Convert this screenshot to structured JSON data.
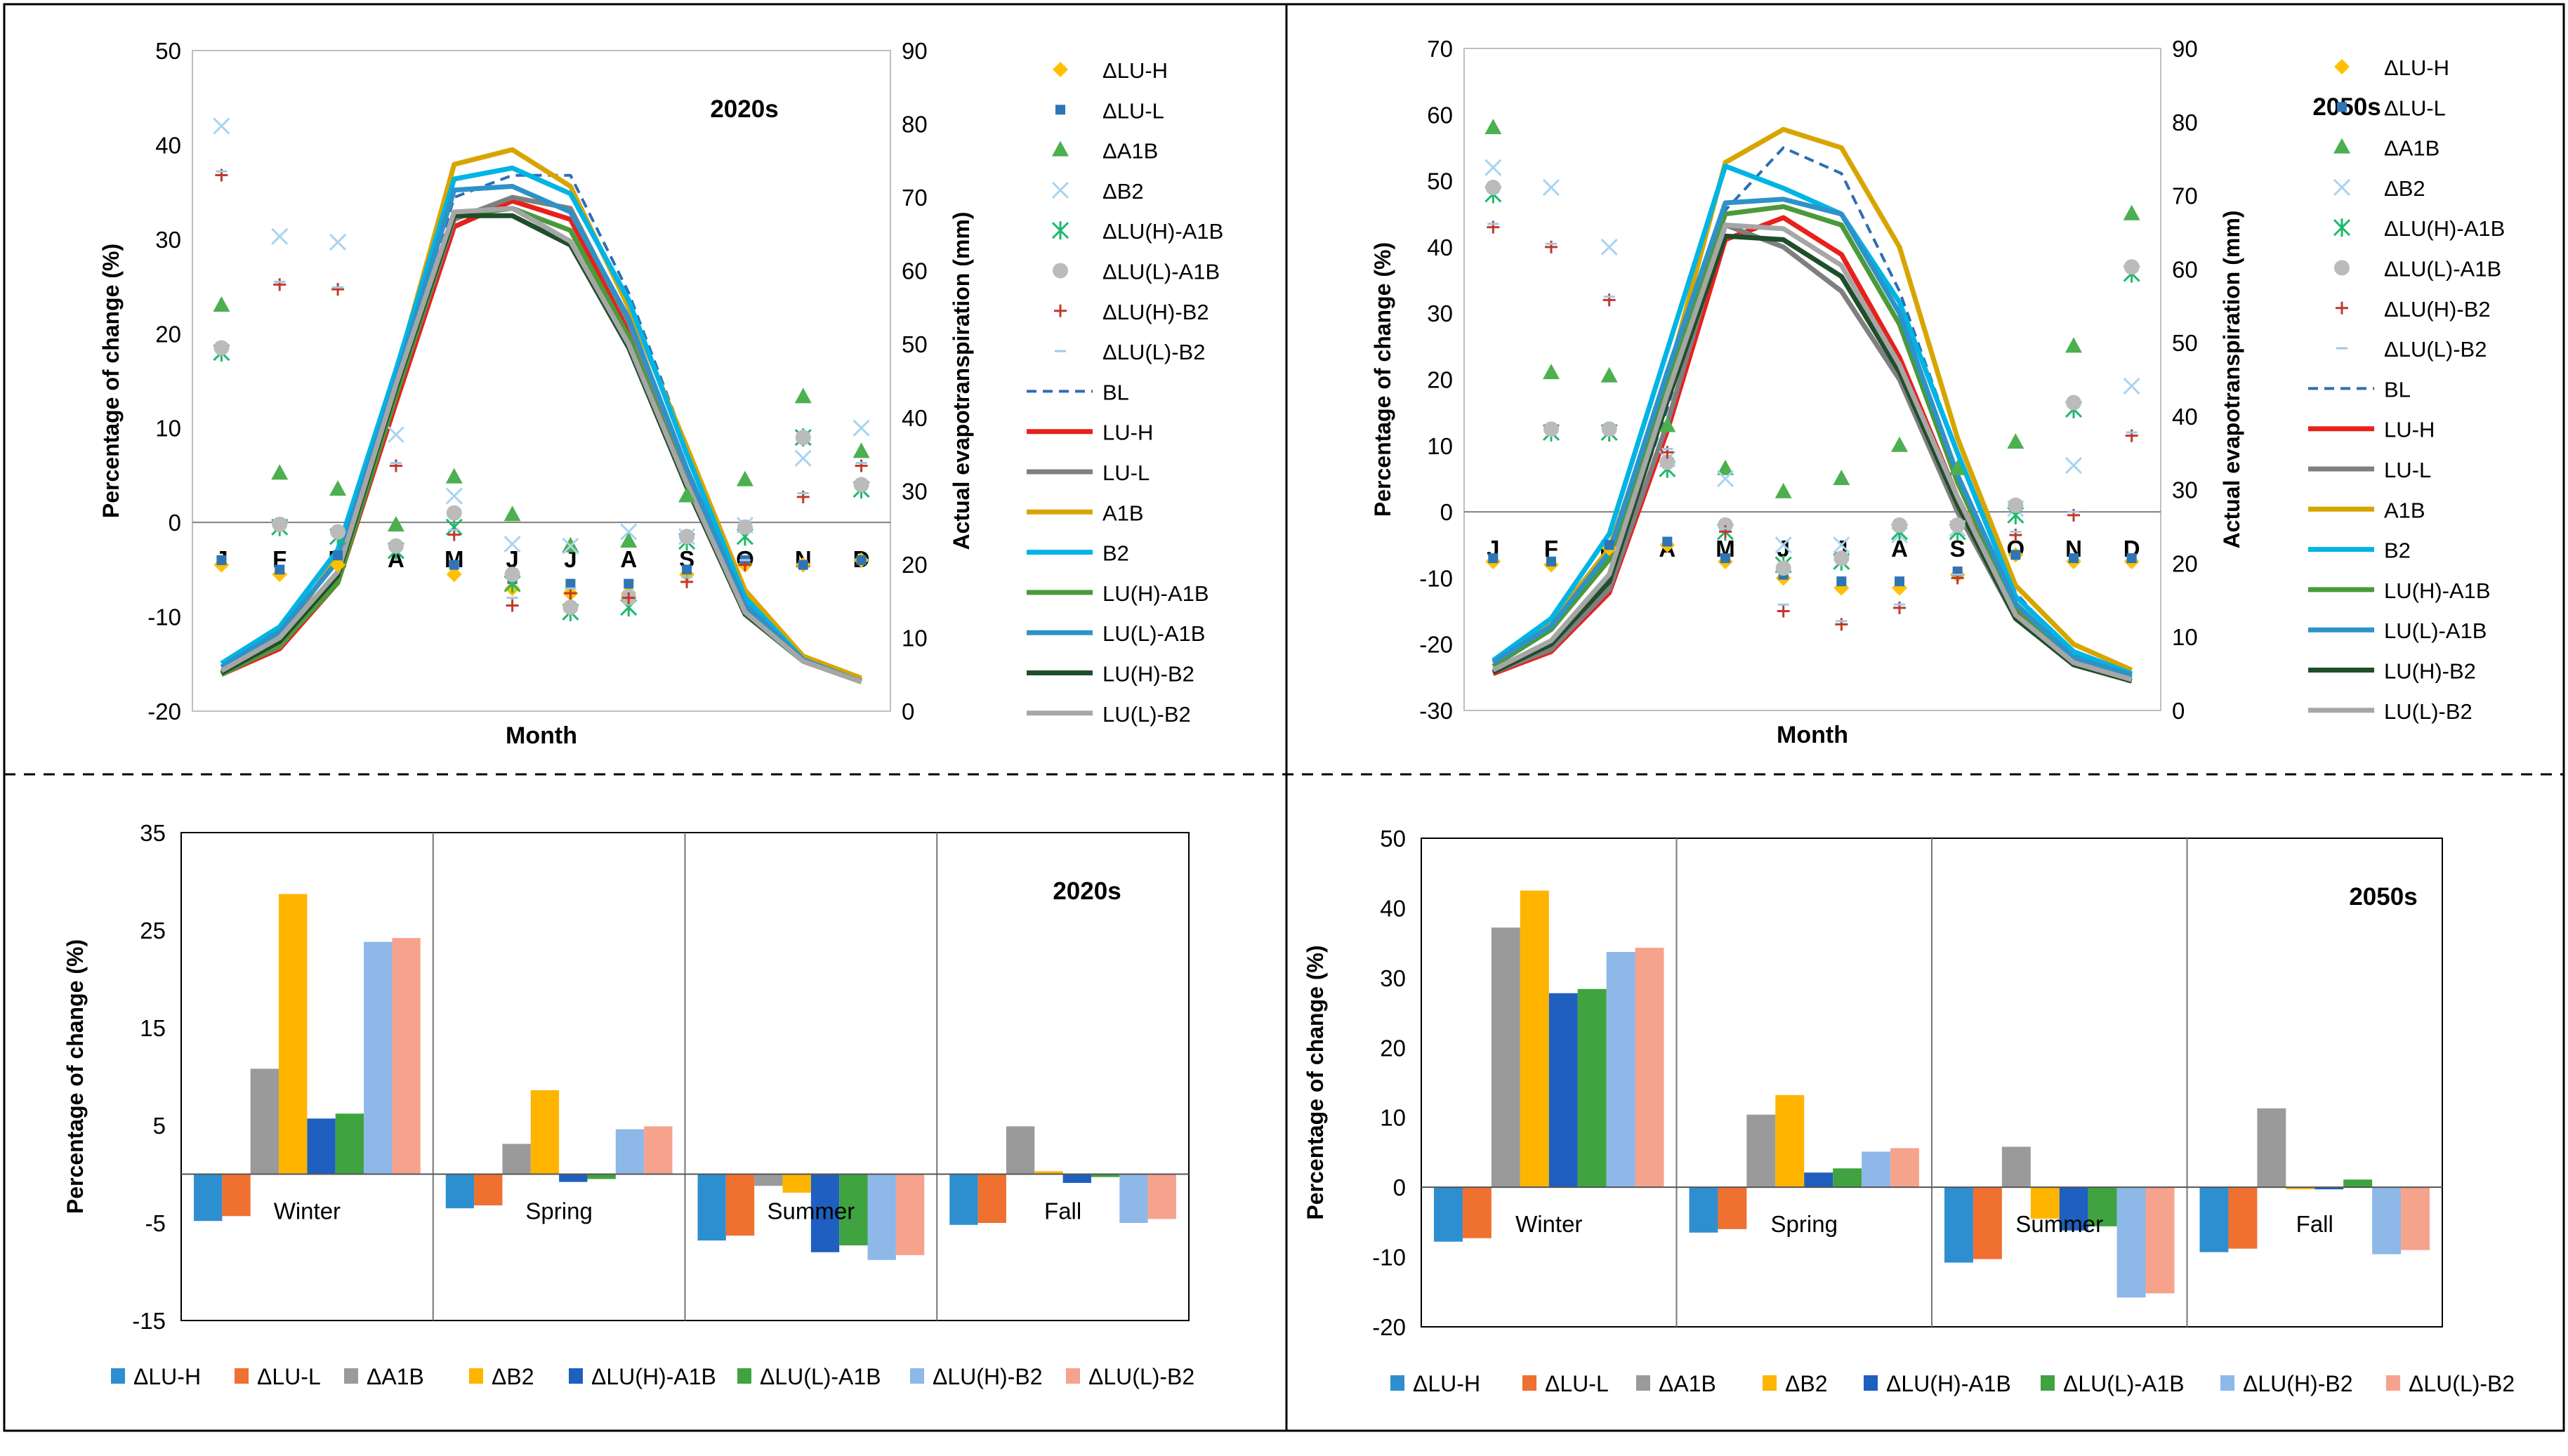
{
  "colors": {
    "dLU_H": "#2E8FD0",
    "dLU_L": "#F07030",
    "dA1B": "#9A9A9A",
    "dB2": "#FFB400",
    "dLUH_A1B": "#1F5FBF",
    "dLUL_A1B": "#3FA33F",
    "dLUH_B2": "#8DB8E8",
    "dLUL_B2": "#F6A38D",
    "mk_dLU_H": "#FFC000",
    "mk_dLU_L": "#2E75B6",
    "mk_dA1B": "#4CAF50",
    "mk_dB2": "#A8D4F0",
    "mk_dLUH_A1B": "#1FB86B",
    "mk_dLUL_A1B": "#BBBBBB",
    "mk_dLUH_B2": "#C0392B",
    "mk_dLUL_B2": "#9ACAE8",
    "BL": "#2E6DB4",
    "LU_H": "#E8201C",
    "LU_L": "#7F7F7F",
    "A1B": "#D8A500",
    "B2": "#00B4E4",
    "LUH_A1B": "#4A9A3A",
    "LUL_A1B": "#2E92C8",
    "LUH_B2": "#1F4E2A",
    "LUL_B2": "#A6A6A6"
  },
  "chart_data": [
    {
      "id": "monthly-2020s",
      "type": "line",
      "title": "2020s",
      "xlabel": "Month",
      "ylabel": "Percentage of change (%)",
      "y2label": "Actual evapotranspiration (mm)",
      "ylim": [
        -20,
        50
      ],
      "yticks": [
        -20,
        -10,
        0,
        10,
        20,
        30,
        40,
        50
      ],
      "y2lim": [
        0,
        90
      ],
      "y2ticks": [
        0,
        10,
        20,
        30,
        40,
        50,
        60,
        70,
        80,
        90
      ],
      "categories": [
        "J",
        "F",
        "M",
        "A",
        "M",
        "J",
        "J",
        "A",
        "S",
        "O",
        "N",
        "D"
      ],
      "point_series": [
        {
          "name": "ΔLU-H",
          "values": [
            -4.5,
            -5.5,
            -4.5,
            -2.5,
            -5.5,
            -7.0,
            -7.5,
            -7.5,
            -5.5,
            -4.5,
            -4.5,
            -4.0
          ]
        },
        {
          "name": "ΔLU-L",
          "values": [
            -4.0,
            -5.0,
            -3.5,
            -2.5,
            -4.5,
            -6.0,
            -6.5,
            -6.5,
            -5.0,
            -4.0,
            -4.5,
            -4.0
          ]
        },
        {
          "name": "ΔA1B",
          "values": [
            23.0,
            5.2,
            3.5,
            -0.3,
            4.8,
            0.8,
            -2.5,
            -2.0,
            2.8,
            4.5,
            13.3,
            7.5
          ]
        },
        {
          "name": "ΔB2",
          "values": [
            42.0,
            30.3,
            29.7,
            9.3,
            2.8,
            -2.3,
            -2.5,
            -1.0,
            -1.5,
            -0.3,
            6.8,
            10.0
          ]
        },
        {
          "name": "ΔLU(H)-A1B",
          "values": [
            18.0,
            -0.5,
            -1.5,
            -3.0,
            -0.5,
            -6.5,
            -9.5,
            -9.0,
            -2.0,
            -1.5,
            9.0,
            3.5
          ]
        },
        {
          "name": "ΔLU(L)-A1B",
          "values": [
            18.5,
            -0.2,
            -1.0,
            -2.5,
            1.0,
            -5.5,
            -9.0,
            -8.0,
            -1.5,
            -0.5,
            9.0,
            4.0
          ]
        },
        {
          "name": "ΔLU(H)-B2",
          "values": [
            36.8,
            25.2,
            24.7,
            6.0,
            -1.3,
            -8.8,
            -7.5,
            -8.0,
            -6.3,
            -4.5,
            2.7,
            6.0
          ]
        },
        {
          "name": "ΔLU(L)-B2",
          "values": [
            37.2,
            25.5,
            24.9,
            6.3,
            -0.8,
            -8.0,
            -7.0,
            -7.3,
            -5.8,
            -4.0,
            3.1,
            6.3
          ]
        }
      ],
      "line_series": [
        {
          "name": "BL",
          "dashed": true,
          "values": [
            5.5,
            9.5,
            19,
            43,
            70,
            73,
            73,
            57,
            36,
            16,
            7.5,
            4.5
          ]
        },
        {
          "name": "LU-H",
          "values": [
            5.0,
            8.5,
            17.5,
            42,
            66,
            69.5,
            67,
            52,
            31.5,
            13.5,
            7.0,
            4.0
          ]
        },
        {
          "name": "LU-L",
          "values": [
            5.2,
            8.8,
            18,
            43,
            67,
            70,
            68.5,
            53,
            32,
            14,
            7.2,
            4.2
          ]
        },
        {
          "name": "A1B",
          "values": [
            5.5,
            10,
            21,
            46,
            74.5,
            76.5,
            71.5,
            55,
            36,
            16.5,
            7.5,
            4.5
          ]
        },
        {
          "name": "B2",
          "values": [
            6.5,
            11.5,
            22,
            46.5,
            72.5,
            74,
            70.5,
            56,
            35,
            15.5,
            7.0,
            4.0
          ]
        },
        {
          "name": "LU(H)-A1B",
          "values": [
            5.0,
            9.0,
            17.5,
            43,
            67.5,
            68.5,
            65.5,
            51,
            31,
            13.5,
            6.8,
            4.0
          ]
        },
        {
          "name": "LU(L)-A1B",
          "values": [
            6.0,
            10.8,
            20.5,
            45,
            71,
            71.5,
            68,
            53.5,
            33,
            14.5,
            7.0,
            4.0
          ]
        },
        {
          "name": "LU(H)-B2",
          "values": [
            5.2,
            9.5,
            18.5,
            44,
            67.5,
            67.5,
            63.5,
            49.5,
            30.5,
            13.2,
            6.8,
            4.0
          ]
        },
        {
          "name": "LU(L)-B2",
          "values": [
            5.5,
            10.0,
            19.0,
            44.5,
            68,
            68.5,
            64,
            50,
            31,
            13.5,
            6.8,
            4.0
          ]
        }
      ]
    },
    {
      "id": "monthly-2050s",
      "type": "line",
      "title": "2050s",
      "xlabel": "Month",
      "ylabel": "Percentage of change (%)",
      "y2label": "Actual evapotranspiration (mm)",
      "ylim": [
        -30,
        70
      ],
      "yticks": [
        -30,
        -20,
        -10,
        0,
        10,
        20,
        30,
        40,
        50,
        60,
        70
      ],
      "y2lim": [
        0,
        90
      ],
      "y2ticks": [
        0,
        10,
        20,
        30,
        40,
        50,
        60,
        70,
        80,
        90
      ],
      "categories": [
        "J",
        "F",
        "M",
        "A",
        "M",
        "J",
        "J",
        "A",
        "S",
        "O",
        "N",
        "D"
      ],
      "point_series": [
        {
          "name": "ΔLU-H",
          "values": [
            -7.5,
            -8.0,
            -5.5,
            -5.0,
            -7.5,
            -10.0,
            -11.5,
            -11.5,
            -9.5,
            -6.5,
            -7.5,
            -7.5
          ]
        },
        {
          "name": "ΔLU-L",
          "values": [
            -7.0,
            -7.5,
            -5.0,
            -4.5,
            -7.0,
            -9.5,
            -10.5,
            -10.5,
            -9.0,
            -6.5,
            -7.0,
            -7.0
          ]
        },
        {
          "name": "ΔA1B",
          "values": [
            58.0,
            21.0,
            20.5,
            13.0,
            6.5,
            3.0,
            5.0,
            10.0,
            6.5,
            10.5,
            25.0,
            45.0
          ]
        },
        {
          "name": "ΔB2",
          "values": [
            52.0,
            49.0,
            40.0,
            8.0,
            5.0,
            -5.0,
            -5.0,
            -3.5,
            -2.5,
            0.5,
            7.0,
            19.0
          ]
        },
        {
          "name": "ΔLU(H)-A1B",
          "values": [
            48.0,
            12.0,
            12.0,
            6.5,
            -3.0,
            -8.0,
            -7.5,
            -3.0,
            -3.0,
            -0.5,
            15.5,
            36.0
          ]
        },
        {
          "name": "ΔLU(L)-A1B",
          "values": [
            49.0,
            12.5,
            12.5,
            7.5,
            -2.0,
            -8.5,
            -7.0,
            -2.0,
            -2.0,
            1.0,
            16.5,
            37.0
          ]
        },
        {
          "name": "ΔLU(H)-B2",
          "values": [
            43.0,
            40.0,
            32.0,
            9.0,
            -3.0,
            -15.0,
            -17.0,
            -14.5,
            -10.0,
            -3.5,
            -0.5,
            11.5
          ]
        },
        {
          "name": "ΔLU(L)-B2",
          "values": [
            43.5,
            40.5,
            32.5,
            9.5,
            -2.5,
            -14.0,
            -16.5,
            -14.0,
            -9.5,
            -3.0,
            0.0,
            12.0
          ]
        }
      ],
      "line_series": [
        {
          "name": "BL",
          "dashed": true,
          "values": [
            5.5,
            9.0,
            18,
            41,
            68,
            76.5,
            73,
            57,
            35,
            16,
            7.5,
            4.5
          ]
        },
        {
          "name": "LU-H",
          "values": [
            5.0,
            8.0,
            16,
            38,
            64,
            67,
            62,
            48,
            29,
            13.5,
            6.5,
            4.0
          ]
        },
        {
          "name": "LU-L",
          "values": [
            5.2,
            8.3,
            16.5,
            39,
            66,
            63,
            57,
            45,
            27,
            12.5,
            6.3,
            4.0
          ]
        },
        {
          "name": "A1B",
          "values": [
            6.5,
            12.0,
            22,
            45,
            74.5,
            79,
            76.5,
            63,
            37,
            17,
            9.0,
            5.5
          ]
        },
        {
          "name": "B2",
          "values": [
            6.8,
            12.5,
            24,
            49,
            74,
            71,
            67.5,
            55.5,
            35,
            15.5,
            8.0,
            5.0
          ]
        },
        {
          "name": "LU(H)-A1B",
          "values": [
            6.0,
            11.0,
            20.5,
            45,
            67.5,
            68.5,
            66,
            52.5,
            31,
            14,
            7.0,
            4.5
          ]
        },
        {
          "name": "LU(L)-A1B",
          "values": [
            6.5,
            11.5,
            21.5,
            46,
            69,
            69.5,
            67.5,
            54,
            32,
            14.5,
            7.2,
            4.8
          ]
        },
        {
          "name": "LU(H)-B2",
          "values": [
            5.2,
            9.0,
            17.5,
            42,
            64.5,
            64,
            59,
            46,
            28,
            12.5,
            6.2,
            4.0
          ]
        },
        {
          "name": "LU(L)-B2",
          "values": [
            5.5,
            9.5,
            18.5,
            43,
            66,
            65.5,
            60.5,
            47,
            29,
            13,
            6.5,
            4.2
          ]
        }
      ]
    },
    {
      "id": "seasonal-2020s",
      "type": "bar",
      "title": "2020s",
      "ylabel": "Percentage of change (%)",
      "ylim": [
        -15,
        35
      ],
      "yticks": [
        -15,
        -5,
        5,
        15,
        25,
        35
      ],
      "categories": [
        "Winter",
        "Spring",
        "Summer",
        "Fall"
      ],
      "series": [
        {
          "name": "ΔLU-H",
          "values": [
            -4.8,
            -3.5,
            -6.8,
            -5.2
          ]
        },
        {
          "name": "ΔLU-L",
          "values": [
            -4.3,
            -3.2,
            -6.3,
            -5.0
          ]
        },
        {
          "name": "ΔA1B",
          "values": [
            10.8,
            3.1,
            -1.2,
            4.9
          ]
        },
        {
          "name": "ΔB2",
          "values": [
            28.7,
            8.6,
            -1.9,
            0.3
          ]
        },
        {
          "name": "ΔLU(H)-A1B",
          "values": [
            5.7,
            -0.8,
            -8.0,
            -0.9
          ]
        },
        {
          "name": "ΔLU(L)-A1B",
          "values": [
            6.2,
            -0.5,
            -7.3,
            -0.3
          ]
        },
        {
          "name": "ΔLU(H)-B2",
          "values": [
            23.8,
            4.6,
            -8.8,
            -5.0
          ]
        },
        {
          "name": "ΔLU(L)-B2",
          "values": [
            24.2,
            4.9,
            -8.3,
            -4.6
          ]
        }
      ]
    },
    {
      "id": "seasonal-2050s",
      "type": "bar",
      "title": "2050s",
      "ylabel": "Percentage of change (%)",
      "ylim": [
        -20,
        50
      ],
      "yticks": [
        -20,
        -10,
        0,
        10,
        20,
        30,
        40,
        50
      ],
      "categories": [
        "Winter",
        "Spring",
        "Summer",
        "Fall"
      ],
      "series": [
        {
          "name": "ΔLU-H",
          "values": [
            -7.8,
            -6.5,
            -10.8,
            -9.3
          ]
        },
        {
          "name": "ΔLU-L",
          "values": [
            -7.3,
            -6.0,
            -10.3,
            -8.8
          ]
        },
        {
          "name": "ΔA1B",
          "values": [
            37.2,
            10.4,
            5.8,
            11.3
          ]
        },
        {
          "name": "ΔB2",
          "values": [
            42.5,
            13.2,
            -4.5,
            -0.3
          ]
        },
        {
          "name": "ΔLU(H)-A1B",
          "values": [
            27.8,
            2.1,
            -6.2,
            -0.3
          ]
        },
        {
          "name": "ΔLU(L)-A1B",
          "values": [
            28.4,
            2.7,
            -5.6,
            1.1
          ]
        },
        {
          "name": "ΔLU(H)-B2",
          "values": [
            33.7,
            5.1,
            -15.8,
            -9.6
          ]
        },
        {
          "name": "ΔLU(L)-B2",
          "values": [
            34.3,
            5.6,
            -15.2,
            -9.0
          ]
        }
      ]
    }
  ]
}
